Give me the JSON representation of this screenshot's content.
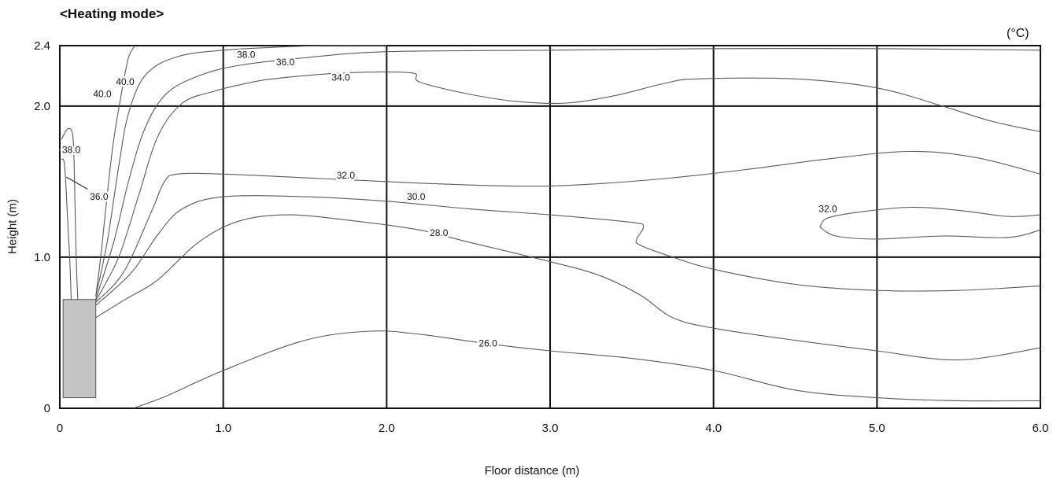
{
  "chart_data": {
    "type": "contour",
    "title": "<Heating mode>",
    "unit": "(°C)",
    "xlabel": "Floor distance (m)",
    "ylabel": "Height (m)",
    "xlim": [
      0,
      6.0
    ],
    "ylim": [
      0,
      2.4
    ],
    "grid": true,
    "x_ticks": [
      {
        "value": 0,
        "label": "0"
      },
      {
        "value": 1,
        "label": "1.0"
      },
      {
        "value": 2,
        "label": "2.0"
      },
      {
        "value": 3,
        "label": "3.0"
      },
      {
        "value": 4,
        "label": "4.0"
      },
      {
        "value": 5,
        "label": "5.0"
      },
      {
        "value": 6,
        "label": "6.0"
      }
    ],
    "y_ticks": [
      {
        "value": 0,
        "label": "0"
      },
      {
        "value": 1,
        "label": "1.0"
      },
      {
        "value": 2,
        "label": "2.0"
      },
      {
        "value": 2.4,
        "label": "2.4"
      }
    ],
    "unit_block": {
      "x": [
        0.02,
        0.22
      ],
      "y": [
        0.07,
        0.72
      ],
      "color": "#c4c4c4"
    },
    "contours": [
      {
        "points": [
          [
            0.01,
            1.78
          ],
          [
            0.05,
            1.85
          ],
          [
            0.08,
            1.8
          ],
          [
            0.09,
            1.5
          ],
          [
            0.1,
            1.0
          ],
          [
            0.11,
            0.72
          ]
        ]
      },
      {
        "points": [
          [
            0.01,
            1.65
          ],
          [
            0.03,
            1.6
          ],
          [
            0.05,
            1.2
          ],
          [
            0.06,
            1.0
          ],
          [
            0.07,
            0.72
          ]
        ]
      },
      {
        "points": [
          [
            0.22,
            0.74
          ],
          [
            0.25,
            1.0
          ],
          [
            0.32,
            1.7
          ],
          [
            0.38,
            2.1
          ],
          [
            0.42,
            2.32
          ],
          [
            0.46,
            2.4
          ]
        ]
      },
      {
        "points": [
          [
            0.22,
            0.74
          ],
          [
            0.29,
            1.1
          ],
          [
            0.36,
            1.6
          ],
          [
            0.42,
            1.95
          ],
          [
            0.52,
            2.2
          ],
          [
            0.7,
            2.32
          ],
          [
            1.0,
            2.37
          ],
          [
            1.6,
            2.4
          ],
          [
            2.0,
            2.4
          ]
        ]
      },
      {
        "points": [
          [
            0.22,
            0.72
          ],
          [
            0.33,
            1.1
          ],
          [
            0.42,
            1.5
          ],
          [
            0.52,
            1.85
          ],
          [
            0.65,
            2.08
          ],
          [
            0.85,
            2.2
          ],
          [
            1.1,
            2.27
          ],
          [
            1.5,
            2.32
          ],
          [
            2.0,
            2.36
          ],
          [
            3.0,
            2.37
          ],
          [
            4.0,
            2.38
          ],
          [
            5.0,
            2.38
          ],
          [
            6.0,
            2.37
          ]
        ]
      },
      {
        "points": [
          [
            0.22,
            0.71
          ],
          [
            0.36,
            1.0
          ],
          [
            0.48,
            1.4
          ],
          [
            0.6,
            1.8
          ],
          [
            0.75,
            2.02
          ],
          [
            0.95,
            2.1
          ],
          [
            1.1,
            2.14
          ],
          [
            1.3,
            2.18
          ],
          [
            1.75,
            2.22
          ],
          [
            2.15,
            2.22
          ],
          [
            2.2,
            2.16
          ],
          [
            2.5,
            2.08
          ],
          [
            2.8,
            2.03
          ],
          [
            3.1,
            2.02
          ],
          [
            3.4,
            2.07
          ],
          [
            3.7,
            2.15
          ],
          [
            3.9,
            2.18
          ],
          [
            4.5,
            2.18
          ],
          [
            5.0,
            2.12
          ],
          [
            5.4,
            2.0
          ],
          [
            5.7,
            1.9
          ],
          [
            6.0,
            1.83
          ]
        ]
      },
      {
        "points": [
          [
            0.22,
            0.7
          ],
          [
            0.39,
            0.9
          ],
          [
            0.56,
            1.3
          ],
          [
            0.64,
            1.5
          ],
          [
            0.72,
            1.55
          ],
          [
            1.0,
            1.55
          ],
          [
            1.6,
            1.52
          ],
          [
            2.2,
            1.49
          ],
          [
            2.8,
            1.47
          ],
          [
            3.2,
            1.48
          ],
          [
            3.7,
            1.52
          ],
          [
            4.2,
            1.58
          ],
          [
            4.7,
            1.65
          ],
          [
            5.2,
            1.7
          ],
          [
            5.6,
            1.66
          ],
          [
            6.0,
            1.55
          ]
        ]
      },
      {
        "points": [
          [
            0.22,
            0.68
          ],
          [
            0.44,
            0.9
          ],
          [
            0.6,
            1.15
          ],
          [
            0.75,
            1.32
          ],
          [
            1.0,
            1.4
          ],
          [
            1.5,
            1.4
          ],
          [
            2.0,
            1.37
          ],
          [
            2.5,
            1.32
          ],
          [
            3.0,
            1.28
          ],
          [
            3.5,
            1.23
          ],
          [
            3.57,
            1.2
          ],
          [
            3.53,
            1.12
          ],
          [
            3.55,
            1.08
          ],
          [
            3.75,
            1.0
          ],
          [
            4.0,
            0.92
          ],
          [
            4.5,
            0.82
          ],
          [
            5.0,
            0.78
          ],
          [
            5.5,
            0.78
          ],
          [
            6.0,
            0.81
          ]
        ]
      },
      {
        "points": [
          [
            0.22,
            0.6
          ],
          [
            0.4,
            0.72
          ],
          [
            0.6,
            0.85
          ],
          [
            0.85,
            1.1
          ],
          [
            1.1,
            1.24
          ],
          [
            1.4,
            1.28
          ],
          [
            1.8,
            1.24
          ],
          [
            2.2,
            1.18
          ],
          [
            2.5,
            1.1
          ],
          [
            3.0,
            0.97
          ],
          [
            3.3,
            0.88
          ],
          [
            3.55,
            0.75
          ],
          [
            3.75,
            0.6
          ],
          [
            4.0,
            0.53
          ],
          [
            4.5,
            0.45
          ],
          [
            5.0,
            0.38
          ],
          [
            5.5,
            0.32
          ],
          [
            6.0,
            0.4
          ]
        ]
      },
      {
        "points": [
          [
            4.65,
            1.2
          ],
          [
            4.7,
            1.26
          ],
          [
            4.9,
            1.3
          ],
          [
            5.2,
            1.33
          ],
          [
            5.5,
            1.31
          ],
          [
            5.8,
            1.27
          ],
          [
            6.0,
            1.28
          ]
        ]
      },
      {
        "points": [
          [
            4.65,
            1.2
          ],
          [
            4.75,
            1.14
          ],
          [
            5.0,
            1.12
          ],
          [
            5.4,
            1.14
          ],
          [
            5.8,
            1.13
          ],
          [
            6.0,
            1.18
          ]
        ]
      },
      {
        "points": [
          [
            0.45,
            0.0
          ],
          [
            0.65,
            0.08
          ],
          [
            1.0,
            0.25
          ],
          [
            1.5,
            0.45
          ],
          [
            1.9,
            0.51
          ],
          [
            2.2,
            0.49
          ],
          [
            2.6,
            0.43
          ],
          [
            3.0,
            0.38
          ],
          [
            3.5,
            0.33
          ],
          [
            4.0,
            0.25
          ],
          [
            4.5,
            0.12
          ],
          [
            5.0,
            0.07
          ],
          [
            5.5,
            0.05
          ],
          [
            6.0,
            0.05
          ]
        ]
      }
    ],
    "contour_labels": [
      {
        "text": "38.0",
        "x": 1.14,
        "y": 2.34
      },
      {
        "text": "36.0",
        "x": 1.38,
        "y": 2.29
      },
      {
        "text": "34.0",
        "x": 1.72,
        "y": 2.19
      },
      {
        "text": "40.0",
        "x": 0.4,
        "y": 2.16
      },
      {
        "text": "40.0",
        "x": 0.26,
        "y": 2.08
      },
      {
        "text": "38.0",
        "x": 0.07,
        "y": 1.71
      },
      {
        "text": "36.0",
        "x": 0.24,
        "y": 1.4
      },
      {
        "text": "32.0",
        "x": 1.75,
        "y": 1.54
      },
      {
        "text": "30.0",
        "x": 2.18,
        "y": 1.4
      },
      {
        "text": "28.0",
        "x": 2.32,
        "y": 1.16
      },
      {
        "text": "32.0",
        "x": 4.7,
        "y": 1.32
      },
      {
        "text": "26.0",
        "x": 2.62,
        "y": 0.43
      }
    ]
  }
}
